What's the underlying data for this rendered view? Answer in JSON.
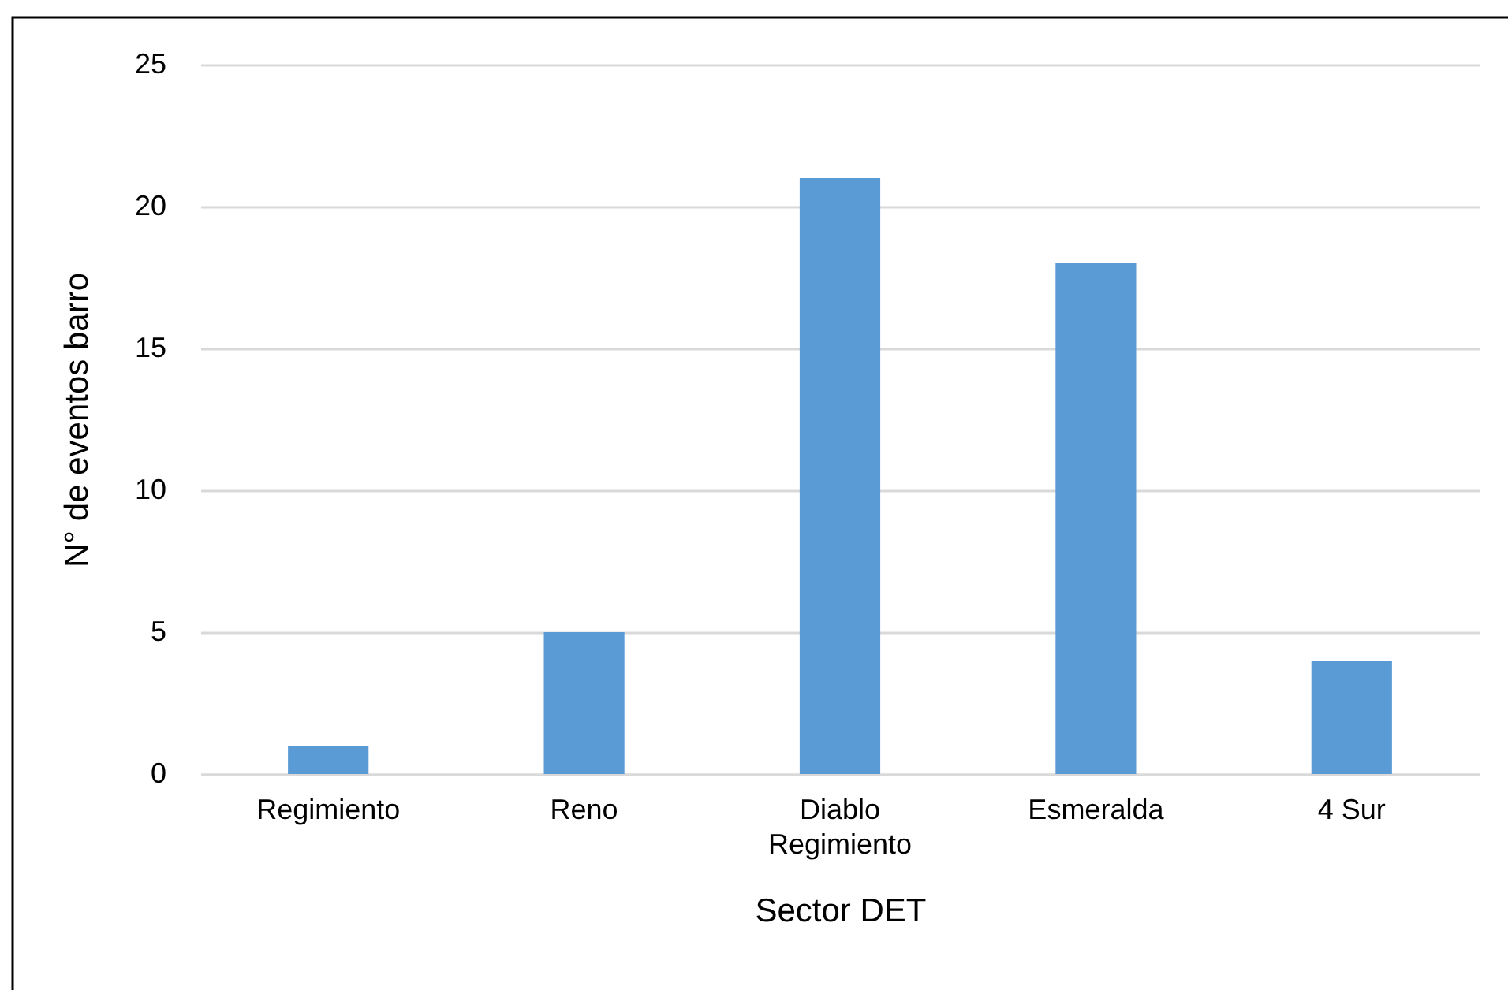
{
  "chart_data": {
    "type": "bar",
    "xlabel": "Sector DET",
    "ylabel": "N° de eventos barro",
    "categories": [
      "Regimiento",
      "Reno",
      "Diablo Regimiento",
      "Esmeralda",
      "4 Sur"
    ],
    "values": [
      1,
      5,
      21,
      18,
      4
    ],
    "color": "#5b9bd5",
    "ylim": [
      0,
      25
    ],
    "yticks": [
      0,
      5,
      10,
      15,
      20,
      25
    ],
    "grid": "y"
  }
}
